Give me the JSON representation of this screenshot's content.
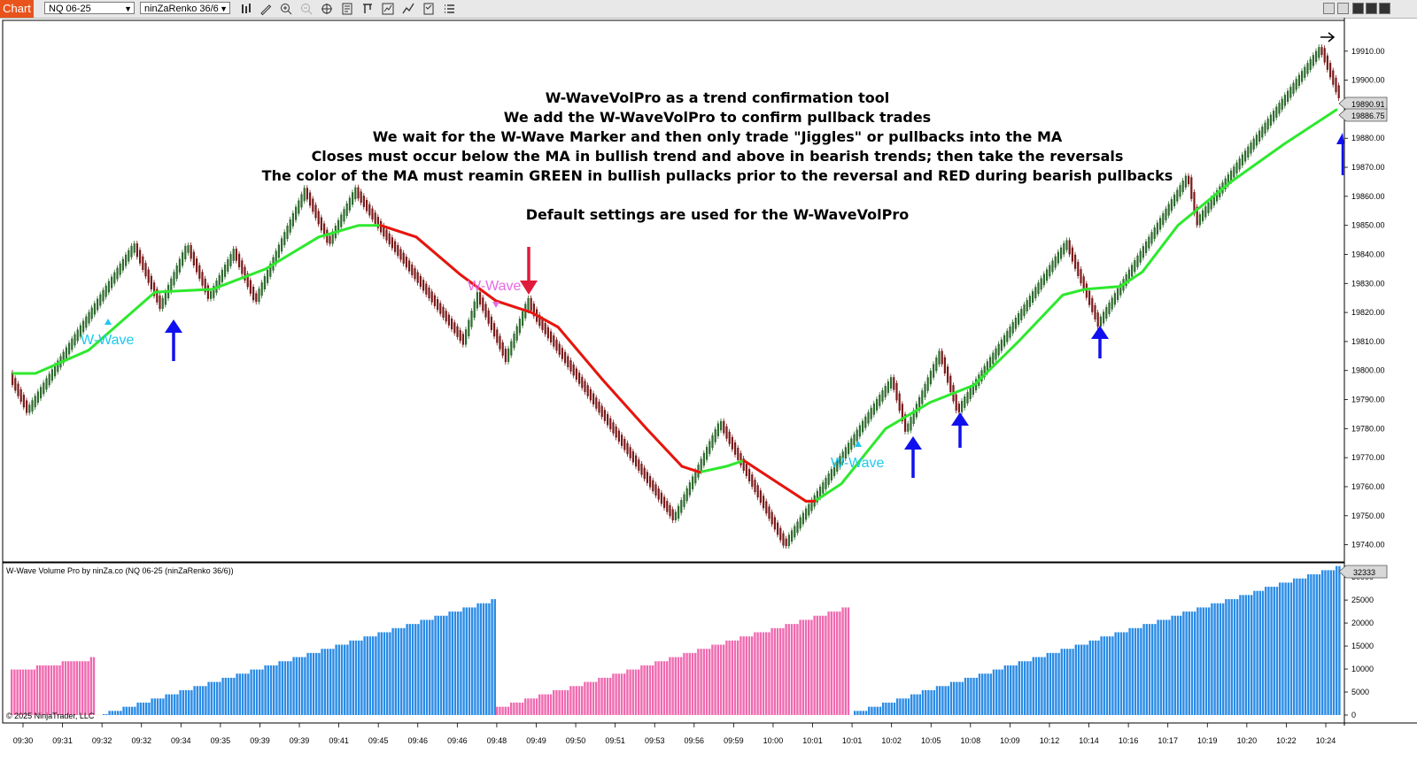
{
  "toolbar": {
    "chart_tab": "Chart",
    "instrument": "NQ 06-25",
    "bar_type": "ninZaRenko 36/6",
    "icons": [
      "bar-style-icon",
      "draw-pencil-icon",
      "zoom-in-icon",
      "zoom-out-icon",
      "crosshair-icon",
      "data-box-icon",
      "properties-icon",
      "indicators-icon",
      "strategies-icon",
      "templates-icon",
      "list-icon"
    ]
  },
  "annotations": {
    "lines": [
      "W-WaveVolPro as a trend confirmation tool",
      "We add the W-WaveVolPro to confirm pullback trades",
      "We wait for the W-Wave Marker and then only trade \"Jiggles\" or pullbacks into the MA",
      "Closes must occur below the MA in bullish trend and above in bearish trends; then take the reversals",
      "The color of the MA must reamin GREEN in bullish pullacks prior to the reversal and RED during bearish pullbacks"
    ],
    "default_note": "Default settings are used for the W-WaveVolPro",
    "wave_label": "W-Wave"
  },
  "indicator": {
    "title": "W-Wave Volume Pro by ninZa.co (NQ 06-25 (ninZaRenko 36/6))",
    "copyright": "© 2025 NinjaTrader, LLC",
    "current_value": "32333"
  },
  "price_axis": {
    "ticks": [
      "19910.00",
      "19900.00",
      "19890.00",
      "19880.00",
      "19870.00",
      "19860.00",
      "19850.00",
      "19840.00",
      "19830.00",
      "19820.00",
      "19810.00",
      "19800.00",
      "19790.00",
      "19780.00",
      "19770.00",
      "19760.00",
      "19750.00",
      "19740.00"
    ],
    "last_price": "19890.91",
    "ma_price": "19886.75"
  },
  "volume_axis": {
    "ticks": [
      "30000",
      "25000",
      "20000",
      "15000",
      "10000",
      "5000",
      "0"
    ]
  },
  "time_axis": {
    "labels": [
      "09:30",
      "09:31",
      "09:32",
      "09:32",
      "09:34",
      "09:35",
      "09:39",
      "09:39",
      "09:41",
      "09:45",
      "09:46",
      "09:46",
      "09:48",
      "09:49",
      "09:50",
      "09:51",
      "09:53",
      "09:56",
      "09:59",
      "10:00",
      "10:01",
      "10:01",
      "10:02",
      "10:05",
      "10:08",
      "10:09",
      "10:12",
      "10:14",
      "10:16",
      "10:17",
      "10:19",
      "10:20",
      "10:22",
      "10:24"
    ]
  },
  "colors": {
    "bull_bar": "#2f6b2f",
    "bear_bar": "#7a1a1a",
    "ma_bull": "#2ee82e",
    "ma_bear": "#ee1111",
    "vol_bull": "#2b8ce6",
    "vol_bear": "#f06ab0",
    "marker_up": "#1ec8f0",
    "marker_down": "#e66ae6",
    "arrow_up": "#1010ee",
    "arrow_down": "#e01a3c"
  },
  "chart_data": [
    {
      "type": "candlestick",
      "title": "",
      "ylim": [
        19735,
        19920
      ],
      "price_path": [
        [
          0,
          19804
        ],
        [
          30,
          19786
        ],
        [
          150,
          19843
        ],
        [
          180,
          19822
        ],
        [
          210,
          19843
        ],
        [
          235,
          19825
        ],
        [
          263,
          19841
        ],
        [
          287,
          19824
        ],
        [
          343,
          19862
        ],
        [
          370,
          19844
        ],
        [
          400,
          19862
        ],
        [
          433,
          19847
        ],
        [
          522,
          19810
        ],
        [
          538,
          19826
        ],
        [
          570,
          19804
        ],
        [
          595,
          19824
        ],
        [
          605,
          19818
        ],
        [
          760,
          19749
        ],
        [
          812,
          19782
        ],
        [
          885,
          19740
        ],
        [
          1006,
          19797
        ],
        [
          1022,
          19779
        ],
        [
          1060,
          19806
        ],
        [
          1080,
          19786
        ],
        [
          1203,
          19844
        ],
        [
          1239,
          19816
        ],
        [
          1340,
          19867
        ],
        [
          1350,
          19851
        ],
        [
          1490,
          19911
        ],
        [
          1510,
          19895
        ]
      ],
      "ma_path": [
        [
          14,
          19799,
          "bull"
        ],
        [
          40,
          19799,
          "bull"
        ],
        [
          100,
          19807,
          "bull"
        ],
        [
          175,
          19827,
          "bull"
        ],
        [
          240,
          19828,
          "bull"
        ],
        [
          300,
          19835,
          "bull"
        ],
        [
          360,
          19846,
          "bull"
        ],
        [
          405,
          19850,
          "bull"
        ],
        [
          430,
          19850,
          "bear"
        ],
        [
          470,
          19846,
          "bear"
        ],
        [
          520,
          19833,
          "bear"
        ],
        [
          560,
          19824,
          "bear"
        ],
        [
          600,
          19820,
          "bear"
        ],
        [
          630,
          19815,
          "bear"
        ],
        [
          680,
          19797,
          "bear"
        ],
        [
          730,
          19780,
          "bear"
        ],
        [
          770,
          19767,
          "bear"
        ],
        [
          790,
          19765,
          "bull"
        ],
        [
          820,
          19767,
          "bull"
        ],
        [
          840,
          19769,
          "bear"
        ],
        [
          880,
          19761,
          "bear"
        ],
        [
          910,
          19755,
          "bear"
        ],
        [
          920,
          19755,
          "bull"
        ],
        [
          950,
          19761,
          "bull"
        ],
        [
          1000,
          19780,
          "bull"
        ],
        [
          1050,
          19789,
          "bull"
        ],
        [
          1100,
          19795,
          "bull"
        ],
        [
          1150,
          19810,
          "bull"
        ],
        [
          1200,
          19826,
          "bull"
        ],
        [
          1225,
          19828,
          "bull"
        ],
        [
          1265,
          19829,
          "bull"
        ],
        [
          1290,
          19834,
          "bull"
        ],
        [
          1330,
          19850,
          "bull"
        ],
        [
          1390,
          19865,
          "bull"
        ],
        [
          1450,
          19878,
          "bull"
        ],
        [
          1510,
          19890,
          "bull"
        ]
      ]
    },
    {
      "type": "bar",
      "title": "",
      "ylim": [
        0,
        32333
      ],
      "segments": [
        {
          "dir": "bear",
          "x0": 12,
          "x1": 108,
          "v0": 9600,
          "v1": 12400
        },
        {
          "dir": "bull",
          "x0": 116,
          "x1": 558,
          "v0": 200,
          "v1": 25000
        },
        {
          "dir": "bear",
          "x0": 560,
          "x1": 960,
          "v0": 1400,
          "v1": 23600
        },
        {
          "dir": "bull",
          "x0": 964,
          "x1": 1512,
          "v0": 500,
          "v1": 32333
        }
      ]
    }
  ]
}
